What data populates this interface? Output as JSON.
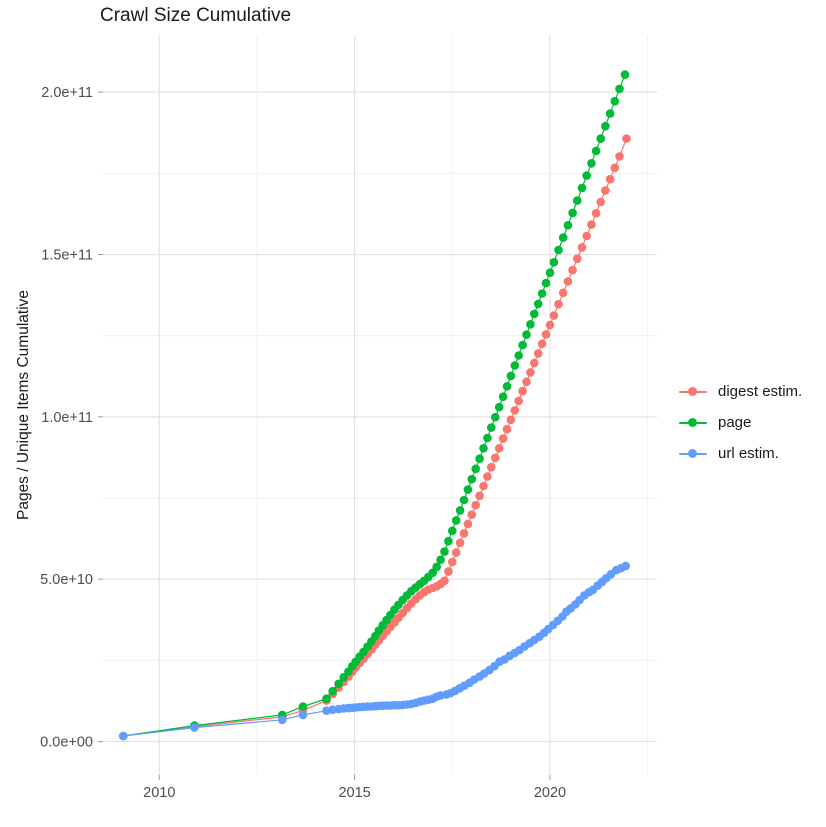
{
  "chart_data": {
    "type": "line",
    "title": "Crawl Size Cumulative",
    "xlabel": "",
    "ylabel": "Pages / Unique Items Cumulative",
    "note": "y values stored in billions (1e9); tick labels show scientific notation",
    "xlim": [
      2008.56,
      2022.74
    ],
    "ylim_e9": [
      -10.3,
      217.6
    ],
    "grid": true,
    "legend_position": "right",
    "x_ticks": [
      {
        "v": 2010,
        "label": "2010"
      },
      {
        "v": 2015,
        "label": "2015"
      },
      {
        "v": 2020,
        "label": "2020"
      }
    ],
    "x_minor": [
      2012.5,
      2017.5,
      2022.5
    ],
    "y_ticks": [
      {
        "v": 0,
        "label": "0.0e+00"
      },
      {
        "v": 50,
        "label": "5.0e+10"
      },
      {
        "v": 100,
        "label": "1.0e+11"
      },
      {
        "v": 150,
        "label": "1.5e+11"
      },
      {
        "v": 200,
        "label": "2.0e+11"
      }
    ],
    "y_minor": [
      25,
      75,
      125,
      175
    ],
    "legend": {
      "items": [
        {
          "label": "digest estim."
        },
        {
          "label": "page"
        },
        {
          "label": "url estim."
        }
      ]
    },
    "series": [
      {
        "name": "digest estim.",
        "color": "#F8766D",
        "points": [
          [
            2009.08,
            1.7
          ],
          [
            2010.9,
            4.6
          ],
          [
            2013.15,
            7.6
          ],
          [
            2013.68,
            9.6
          ],
          [
            2014.28,
            12.6
          ],
          [
            2014.44,
            14.6
          ],
          [
            2014.59,
            16.6
          ],
          [
            2014.72,
            18.4
          ],
          [
            2014.84,
            20.0
          ],
          [
            2014.94,
            21.5
          ],
          [
            2015.03,
            22.8
          ],
          [
            2015.13,
            24.2
          ],
          [
            2015.23,
            25.5
          ],
          [
            2015.33,
            26.9
          ],
          [
            2015.43,
            28.3
          ],
          [
            2015.53,
            29.8
          ],
          [
            2015.62,
            31.2
          ],
          [
            2015.72,
            32.6
          ],
          [
            2015.82,
            34.0
          ],
          [
            2015.92,
            35.3
          ],
          [
            2016.02,
            36.7
          ],
          [
            2016.12,
            38.1
          ],
          [
            2016.23,
            39.6
          ],
          [
            2016.34,
            41.1
          ],
          [
            2016.45,
            42.5
          ],
          [
            2016.56,
            43.8
          ],
          [
            2016.67,
            45.0
          ],
          [
            2016.78,
            46.0
          ],
          [
            2016.89,
            46.8
          ],
          [
            2017.0,
            47.3
          ],
          [
            2017.1,
            47.8
          ],
          [
            2017.2,
            48.5
          ],
          [
            2017.3,
            49.5
          ],
          [
            2017.4,
            52.4
          ],
          [
            2017.5,
            55.3
          ],
          [
            2017.6,
            58.2
          ],
          [
            2017.7,
            61.2
          ],
          [
            2017.8,
            64.1
          ],
          [
            2017.9,
            67.0
          ],
          [
            2018.0,
            69.9
          ],
          [
            2018.1,
            72.8
          ],
          [
            2018.2,
            75.7
          ],
          [
            2018.3,
            78.7
          ],
          [
            2018.4,
            81.6
          ],
          [
            2018.5,
            84.5
          ],
          [
            2018.6,
            87.4
          ],
          [
            2018.7,
            90.3
          ],
          [
            2018.8,
            93.3
          ],
          [
            2018.9,
            96.2
          ],
          [
            2019.0,
            99.1
          ],
          [
            2019.1,
            102.0
          ],
          [
            2019.2,
            104.9
          ],
          [
            2019.3,
            107.9
          ],
          [
            2019.4,
            110.8
          ],
          [
            2019.5,
            113.7
          ],
          [
            2019.6,
            116.6
          ],
          [
            2019.7,
            119.5
          ],
          [
            2019.8,
            122.5
          ],
          [
            2019.9,
            125.4
          ],
          [
            2020.0,
            128.3
          ],
          [
            2020.1,
            131.2
          ],
          [
            2020.22,
            134.7
          ],
          [
            2020.34,
            138.2
          ],
          [
            2020.46,
            141.7
          ],
          [
            2020.58,
            145.2
          ],
          [
            2020.7,
            148.7
          ],
          [
            2020.82,
            152.2
          ],
          [
            2020.94,
            155.7
          ],
          [
            2021.06,
            159.2
          ],
          [
            2021.18,
            162.7
          ],
          [
            2021.3,
            166.2
          ],
          [
            2021.42,
            169.7
          ],
          [
            2021.54,
            173.2
          ],
          [
            2021.66,
            176.7
          ],
          [
            2021.78,
            180.2
          ],
          [
            2021.96,
            185.7
          ]
        ]
      },
      {
        "name": "page",
        "color": "#00BA38",
        "points": [
          [
            2009.08,
            1.7
          ],
          [
            2010.9,
            4.9
          ],
          [
            2013.15,
            8.2
          ],
          [
            2013.68,
            10.8
          ],
          [
            2014.28,
            13.2
          ],
          [
            2014.44,
            15.5
          ],
          [
            2014.59,
            17.8
          ],
          [
            2014.72,
            19.8
          ],
          [
            2014.84,
            21.5
          ],
          [
            2014.94,
            23.2
          ],
          [
            2015.03,
            24.6
          ],
          [
            2015.13,
            26.2
          ],
          [
            2015.23,
            27.6
          ],
          [
            2015.33,
            29.2
          ],
          [
            2015.43,
            30.8
          ],
          [
            2015.53,
            32.5
          ],
          [
            2015.62,
            34.2
          ],
          [
            2015.72,
            35.8
          ],
          [
            2015.82,
            37.4
          ],
          [
            2015.92,
            39.0
          ],
          [
            2016.02,
            40.6
          ],
          [
            2016.12,
            42.1
          ],
          [
            2016.23,
            43.6
          ],
          [
            2016.34,
            45.0
          ],
          [
            2016.45,
            46.3
          ],
          [
            2016.56,
            47.4
          ],
          [
            2016.67,
            48.5
          ],
          [
            2016.78,
            49.5
          ],
          [
            2016.89,
            50.7
          ],
          [
            2017.0,
            52.0
          ],
          [
            2017.1,
            53.8
          ],
          [
            2017.2,
            56.0
          ],
          [
            2017.3,
            58.5
          ],
          [
            2017.4,
            61.7
          ],
          [
            2017.5,
            64.9
          ],
          [
            2017.6,
            68.1
          ],
          [
            2017.7,
            71.2
          ],
          [
            2017.8,
            74.4
          ],
          [
            2017.9,
            77.6
          ],
          [
            2018.0,
            80.8
          ],
          [
            2018.1,
            84.0
          ],
          [
            2018.2,
            87.1
          ],
          [
            2018.3,
            90.3
          ],
          [
            2018.4,
            93.5
          ],
          [
            2018.5,
            96.7
          ],
          [
            2018.6,
            99.9
          ],
          [
            2018.7,
            103.0
          ],
          [
            2018.8,
            106.2
          ],
          [
            2018.9,
            109.4
          ],
          [
            2019.0,
            112.6
          ],
          [
            2019.1,
            115.8
          ],
          [
            2019.2,
            118.9
          ],
          [
            2019.3,
            122.1
          ],
          [
            2019.4,
            125.3
          ],
          [
            2019.5,
            128.5
          ],
          [
            2019.6,
            131.7
          ],
          [
            2019.7,
            134.8
          ],
          [
            2019.8,
            138.0
          ],
          [
            2019.9,
            141.2
          ],
          [
            2020.0,
            144.4
          ],
          [
            2020.1,
            147.6
          ],
          [
            2020.22,
            151.4
          ],
          [
            2020.34,
            155.2
          ],
          [
            2020.46,
            159.0
          ],
          [
            2020.58,
            162.8
          ],
          [
            2020.7,
            166.6
          ],
          [
            2020.82,
            170.5
          ],
          [
            2020.94,
            174.3
          ],
          [
            2021.06,
            178.1
          ],
          [
            2021.18,
            181.9
          ],
          [
            2021.3,
            185.7
          ],
          [
            2021.42,
            189.5
          ],
          [
            2021.54,
            193.4
          ],
          [
            2021.66,
            197.2
          ],
          [
            2021.78,
            201.0
          ],
          [
            2021.92,
            205.4
          ]
        ]
      },
      {
        "name": "url estim.",
        "color": "#619CFF",
        "points": [
          [
            2009.08,
            1.7
          ],
          [
            2010.9,
            4.3
          ],
          [
            2013.15,
            6.7
          ],
          [
            2013.68,
            8.2
          ],
          [
            2014.28,
            9.5
          ],
          [
            2014.44,
            9.8
          ],
          [
            2014.59,
            10.0
          ],
          [
            2014.72,
            10.2
          ],
          [
            2014.84,
            10.3
          ],
          [
            2014.94,
            10.4
          ],
          [
            2015.03,
            10.5
          ],
          [
            2015.13,
            10.6
          ],
          [
            2015.23,
            10.7
          ],
          [
            2015.33,
            10.8
          ],
          [
            2015.43,
            10.8
          ],
          [
            2015.53,
            10.9
          ],
          [
            2015.62,
            11.0
          ],
          [
            2015.72,
            11.0
          ],
          [
            2015.82,
            11.1
          ],
          [
            2015.92,
            11.1
          ],
          [
            2016.02,
            11.2
          ],
          [
            2016.12,
            11.2
          ],
          [
            2016.23,
            11.3
          ],
          [
            2016.34,
            11.4
          ],
          [
            2016.45,
            11.6
          ],
          [
            2016.56,
            11.9
          ],
          [
            2016.67,
            12.3
          ],
          [
            2016.78,
            12.6
          ],
          [
            2016.89,
            12.9
          ],
          [
            2017.0,
            13.2
          ],
          [
            2017.1,
            13.8
          ],
          [
            2017.2,
            14.2
          ],
          [
            2017.35,
            14.5
          ],
          [
            2017.45,
            14.9
          ],
          [
            2017.57,
            15.6
          ],
          [
            2017.69,
            16.4
          ],
          [
            2017.81,
            17.2
          ],
          [
            2017.94,
            18.1
          ],
          [
            2018.06,
            19.1
          ],
          [
            2018.2,
            20.0
          ],
          [
            2018.32,
            21.0
          ],
          [
            2018.45,
            22.0
          ],
          [
            2018.58,
            23.2
          ],
          [
            2018.71,
            24.6
          ],
          [
            2018.84,
            25.3
          ],
          [
            2018.97,
            26.4
          ],
          [
            2019.1,
            27.3
          ],
          [
            2019.22,
            28.2
          ],
          [
            2019.35,
            29.3
          ],
          [
            2019.48,
            30.3
          ],
          [
            2019.6,
            31.3
          ],
          [
            2019.73,
            32.3
          ],
          [
            2019.85,
            33.5
          ],
          [
            2019.96,
            34.7
          ],
          [
            2020.08,
            35.9
          ],
          [
            2020.2,
            37.2
          ],
          [
            2020.32,
            38.5
          ],
          [
            2020.42,
            40.0
          ],
          [
            2020.53,
            41.0
          ],
          [
            2020.65,
            42.2
          ],
          [
            2020.76,
            43.6
          ],
          [
            2020.88,
            45.0
          ],
          [
            2021.0,
            46.0
          ],
          [
            2021.1,
            46.7
          ],
          [
            2021.22,
            48.0
          ],
          [
            2021.33,
            49.1
          ],
          [
            2021.44,
            50.3
          ],
          [
            2021.56,
            51.5
          ],
          [
            2021.7,
            52.8
          ],
          [
            2021.82,
            53.4
          ],
          [
            2021.94,
            54.1
          ]
        ]
      }
    ]
  }
}
